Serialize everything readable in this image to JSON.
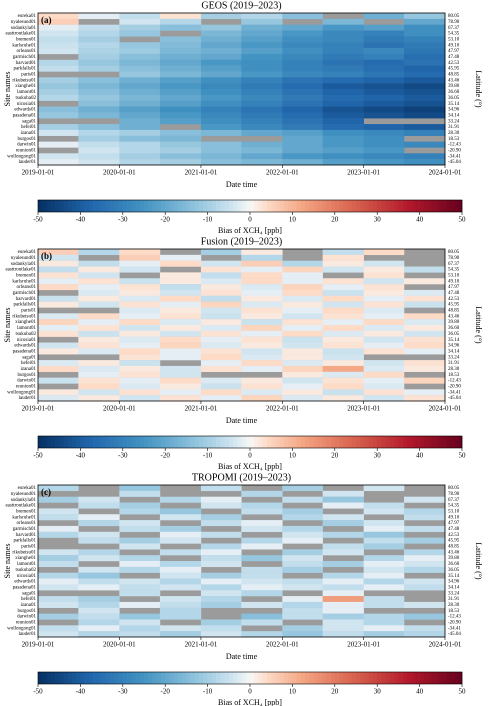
{
  "chart_data": [
    {
      "type": "heatmap",
      "title": "GEOS (2019–2023)",
      "panel_label": "(a)",
      "ylabel": "Site names",
      "y2label": "Latitude (°)",
      "xlabel": "Date time",
      "categories": [
        "eureka01",
        "nyalesund01",
        "sodankyla01",
        "easttroutlake01",
        "bremen01",
        "karlsruhe01",
        "orleans01",
        "garmisch01",
        "harvard01",
        "parkfalls01",
        "paris01",
        "rikubetsu01",
        "xianghe01",
        "lamont01",
        "tsukuba02",
        "nicosia01",
        "edwards01",
        "pasadena01",
        "saga01",
        "hefei01",
        "izana01",
        "burgos01",
        "darwin01",
        "reunion01",
        "wollongong01",
        "lauder01"
      ],
      "y2_labels": [
        "80.05",
        "78.90",
        "67.37",
        "54.35",
        "53.10",
        "49.10",
        "47.97",
        "47.48",
        "42.53",
        "45.95",
        "48.85",
        "43.46",
        "39.80",
        "36.60",
        "36.05",
        "35.14",
        "34.96",
        "34.14",
        "33.24",
        "31.91",
        "28.30",
        "18.53",
        "-12.43",
        "-20.90",
        "-34.41",
        "-45.04"
      ],
      "x": [
        "2019-01-01",
        "2019-07-01",
        "2020-01-01",
        "2020-07-01",
        "2021-01-01",
        "2021-07-01",
        "2022-01-01",
        "2022-07-01",
        "2023-01-01",
        "2023-07-01"
      ],
      "xlim": [
        "2019-01-01",
        "2024-01-01"
      ],
      "xticks": [
        "2019-01-01",
        "2020-01-01",
        "2021-01-01",
        "2022-01-01",
        "2023-01-01",
        "2024-01-01"
      ],
      "nan_color": "#9b9b9b",
      "z": [
        [
          4,
          -2,
          -6,
          3,
          -10,
          -8,
          -14,
          null,
          -18,
          -12
        ],
        [
          6,
          null,
          -4,
          -8,
          null,
          -12,
          null,
          -16,
          null,
          -20
        ],
        [
          -2,
          -6,
          -10,
          -14,
          -12,
          -18,
          -20,
          -24,
          -22,
          -26
        ],
        [
          -4,
          -8,
          -12,
          null,
          -16,
          -20,
          -24,
          -28,
          -30,
          -26
        ],
        [
          -6,
          -10,
          null,
          -14,
          -18,
          -22,
          -26,
          -28,
          -32,
          -30
        ],
        [
          -5,
          -8,
          -12,
          -15,
          -20,
          -24,
          -28,
          -30,
          -34,
          -32
        ],
        [
          -4,
          -9,
          -11,
          -16,
          -18,
          -22,
          -26,
          -30,
          -28,
          -33
        ],
        [
          null,
          -10,
          -14,
          -18,
          -20,
          -25,
          -28,
          -32,
          -30,
          -35
        ],
        [
          -8,
          -12,
          -16,
          -20,
          -24,
          -26,
          -30,
          -34,
          -36,
          -34
        ],
        [
          -6,
          -10,
          -14,
          -18,
          -22,
          -26,
          -30,
          -32,
          -35,
          -38
        ],
        [
          null,
          null,
          -12,
          -16,
          -20,
          -24,
          -28,
          -30,
          -33,
          -36
        ],
        [
          -10,
          -14,
          -18,
          -22,
          -26,
          -30,
          -34,
          -36,
          -38,
          -40
        ],
        [
          -12,
          -16,
          -20,
          -24,
          -28,
          -32,
          -36,
          -40,
          -42,
          -44
        ],
        [
          -10,
          -14,
          -18,
          -22,
          -26,
          -30,
          -34,
          -38,
          -40,
          -42
        ],
        [
          -8,
          -12,
          -16,
          -20,
          -24,
          -28,
          -32,
          -36,
          -38,
          -40
        ],
        [
          null,
          -14,
          -18,
          -22,
          -26,
          -30,
          -34,
          -38,
          -40,
          -42
        ],
        [
          -14,
          -18,
          -22,
          -26,
          -30,
          -34,
          -38,
          -42,
          -44,
          -46
        ],
        [
          -12,
          -16,
          -20,
          -24,
          -28,
          -32,
          -36,
          -40,
          -42,
          -44
        ],
        [
          null,
          null,
          -18,
          -22,
          -26,
          -30,
          -34,
          -38,
          null,
          null
        ],
        [
          -10,
          -14,
          -18,
          null,
          -24,
          -28,
          -32,
          -36,
          -38,
          -40
        ],
        [
          -4,
          -8,
          -10,
          -14,
          -16,
          -20,
          -22,
          -26,
          -28,
          -30
        ],
        [
          null,
          -10,
          -14,
          -16,
          null,
          null,
          -20,
          -24,
          -26,
          null
        ],
        [
          -2,
          -6,
          -8,
          -12,
          -14,
          -18,
          -20,
          -24,
          -26,
          -28
        ],
        [
          null,
          -4,
          -8,
          -10,
          -14,
          -16,
          -20,
          -22,
          -24,
          null
        ],
        [
          -4,
          -6,
          -10,
          -14,
          -16,
          -20,
          -24,
          -26,
          -28,
          -30
        ],
        [
          -2,
          -4,
          -8,
          -10,
          -14,
          -16,
          -18,
          -22,
          -24,
          -26
        ]
      ],
      "colorbar": {
        "label": "Bias of XCH₄ [ppb]",
        "lim": [
          -50,
          50
        ],
        "ticks": [
          -50,
          -40,
          -30,
          -20,
          -10,
          0,
          10,
          20,
          30,
          40,
          50
        ]
      }
    },
    {
      "type": "heatmap",
      "title": "Fusion (2019–2023)",
      "panel_label": "(b)",
      "ylabel": "Site names",
      "y2label": "Latitude (°)",
      "xlabel": "Date time",
      "categories": [
        "eureka01",
        "nyalesund01",
        "sodankyla01",
        "easttroutlake01",
        "bremen01",
        "karlsruhe01",
        "orleans01",
        "garmisch01",
        "harvard01",
        "parkfalls01",
        "paris01",
        "rikubetsu01",
        "xianghe01",
        "lamont01",
        "tsukuba02",
        "nicosia01",
        "edwards01",
        "pasadena01",
        "saga01",
        "hefei01",
        "izana01",
        "burgos01",
        "darwin01",
        "reunion01",
        "wollongong01",
        "lauder01"
      ],
      "y2_labels": [
        "80.05",
        "78.90",
        "67.37",
        "54.35",
        "53.10",
        "49.10",
        "47.97",
        "47.48",
        "42.53",
        "45.95",
        "48.85",
        "43.46",
        "39.80",
        "36.60",
        "36.05",
        "35.14",
        "34.96",
        "34.14",
        "33.24",
        "31.91",
        "28.30",
        "18.53",
        "-12.43",
        "-20.90",
        "-34.41",
        "-45.04"
      ],
      "x": [
        "2019-01-01",
        "2019-07-01",
        "2020-01-01",
        "2020-07-01",
        "2021-01-01",
        "2021-07-01",
        "2022-01-01",
        "2022-07-01",
        "2023-01-01",
        "2023-07-01"
      ],
      "xlim": [
        "2019-01-01",
        "2024-01-01"
      ],
      "xticks": [
        "2019-01-01",
        "2020-01-01",
        "2021-01-01",
        "2022-01-01",
        "2023-01-01",
        "2024-01-01"
      ],
      "nan_color": "#9b9b9b",
      "z": [
        [
          6,
          -8,
          4,
          null,
          -10,
          2,
          null,
          -6,
          4,
          null
        ],
        [
          -4,
          null,
          6,
          -2,
          null,
          -8,
          null,
          3,
          null,
          null
        ],
        [
          2,
          -6,
          -2,
          4,
          -4,
          6,
          -8,
          2,
          -4,
          null
        ],
        [
          -6,
          2,
          -4,
          null,
          3,
          -2,
          5,
          -4,
          2,
          -6
        ],
        [
          3,
          -4,
          null,
          2,
          -6,
          4,
          -2,
          null,
          3,
          null
        ],
        [
          -2,
          3,
          -5,
          2,
          -3,
          4,
          -2,
          3,
          -4,
          2
        ],
        [
          4,
          -2,
          3,
          -6,
          2,
          -3,
          5,
          -2,
          3,
          null
        ],
        [
          null,
          -3,
          2,
          -4,
          3,
          -2,
          4,
          -5,
          2,
          -3
        ],
        [
          -5,
          2,
          -3,
          4,
          -6,
          2,
          -3,
          4,
          -2,
          3
        ],
        [
          2,
          -4,
          3,
          -2,
          5,
          -3,
          2,
          -4,
          3,
          -5
        ],
        [
          null,
          null,
          -3,
          2,
          -4,
          3,
          -2,
          4,
          -3,
          null
        ],
        [
          -3,
          4,
          -2,
          3,
          -5,
          2,
          -4,
          3,
          -2,
          4
        ],
        [
          5,
          -2,
          4,
          -3,
          2,
          -5,
          3,
          -2,
          4,
          -3
        ],
        [
          -2,
          3,
          -4,
          2,
          -3,
          5,
          -2,
          4,
          -3,
          2
        ],
        [
          3,
          -5,
          2,
          -4,
          3,
          -2,
          4,
          -3,
          2,
          -4
        ],
        [
          null,
          2,
          -3,
          4,
          -2,
          3,
          -5,
          2,
          -4,
          3
        ],
        [
          -4,
          3,
          -2,
          5,
          -3,
          2,
          -4,
          3,
          -2,
          4
        ],
        [
          2,
          -3,
          4,
          -2,
          3,
          -4,
          2,
          -5,
          3,
          -2
        ],
        [
          null,
          null,
          3,
          -2,
          4,
          -3,
          2,
          -4,
          null,
          null
        ],
        [
          -3,
          2,
          -5,
          null,
          -2,
          4,
          -3,
          2,
          -4,
          3
        ],
        [
          4,
          -3,
          2,
          -4,
          3,
          -2,
          5,
          12,
          -3,
          2
        ],
        [
          null,
          -2,
          3,
          -4,
          null,
          null,
          2,
          -3,
          4,
          null
        ],
        [
          -5,
          3,
          -2,
          4,
          -3,
          2,
          -4,
          3,
          -2,
          5
        ],
        [
          null,
          4,
          -3,
          2,
          -5,
          3,
          -2,
          4,
          -3,
          null
        ],
        [
          2,
          -4,
          3,
          -2,
          4,
          -3,
          2,
          -5,
          3,
          -2
        ],
        [
          -3,
          2,
          -4,
          3,
          -2,
          5,
          -3,
          2,
          -4,
          3
        ]
      ],
      "colorbar": {
        "label": "Bias of XCH₄ [ppb]",
        "lim": [
          -50,
          50
        ],
        "ticks": [
          -50,
          -40,
          -30,
          -20,
          -10,
          0,
          10,
          20,
          30,
          40,
          50
        ]
      }
    },
    {
      "type": "heatmap",
      "title": "TROPOMI (2019–2023)",
      "panel_label": "(c)",
      "ylabel": "Site names",
      "y2label": "Latitude (°)",
      "xlabel": "Date time",
      "categories": [
        "eureka01",
        "nyalesund01",
        "sodankyla01",
        "easttroutlake01",
        "bremen01",
        "karlsruhe01",
        "orleans01",
        "garmisch01",
        "harvard01",
        "parkfalls01",
        "paris01",
        "rikubetsu01",
        "xianghe01",
        "lamont01",
        "tsukuba02",
        "nicosia01",
        "edwards01",
        "pasadena01",
        "saga01",
        "hefei01",
        "izana01",
        "burgos01",
        "darwin01",
        "reunion01",
        "wollongong01",
        "lauder01"
      ],
      "y2_labels": [
        "80.05",
        "78.90",
        "67.37",
        "54.35",
        "53.10",
        "49.10",
        "47.97",
        "47.48",
        "42.53",
        "45.95",
        "48.85",
        "43.46",
        "39.80",
        "36.60",
        "36.05",
        "35.14",
        "34.96",
        "34.14",
        "33.24",
        "31.91",
        "28.30",
        "18.53",
        "-12.43",
        "-20.90",
        "-34.41",
        "-45.04"
      ],
      "x": [
        "2019-01-01",
        "2019-07-01",
        "2020-01-01",
        "2020-07-01",
        "2021-01-01",
        "2021-07-01",
        "2022-01-01",
        "2022-07-01",
        "2023-01-01",
        "2023-07-01"
      ],
      "xlim": [
        "2019-01-01",
        "2024-01-01"
      ],
      "xticks": [
        "2019-01-01",
        "2020-01-01",
        "2021-01-01",
        "2022-01-01",
        "2023-01-01",
        "2024-01-01"
      ],
      "nan_color": "#9b9b9b",
      "z": [
        [
          -8,
          null,
          -12,
          null,
          -6,
          null,
          -10,
          null,
          -4,
          null
        ],
        [
          null,
          null,
          -6,
          null,
          null,
          -8,
          null,
          -4,
          null,
          null
        ],
        [
          -10,
          -4,
          null,
          -8,
          -2,
          null,
          -6,
          -12,
          null,
          -4
        ],
        [
          null,
          -6,
          -10,
          null,
          -4,
          -8,
          null,
          -2,
          -6,
          null
        ],
        [
          -4,
          null,
          -8,
          -12,
          null,
          -6,
          -10,
          null,
          -4,
          -8
        ],
        [
          -6,
          -2,
          null,
          -4,
          -10,
          null,
          -8,
          -4,
          null,
          -6
        ],
        [
          null,
          -8,
          -4,
          null,
          -6,
          -2,
          null,
          -10,
          -4,
          null
        ],
        [
          -2,
          null,
          -6,
          -10,
          null,
          -4,
          -8,
          null,
          -2,
          -6
        ],
        [
          -8,
          -4,
          null,
          -2,
          -6,
          null,
          -4,
          -8,
          -12,
          null
        ],
        [
          null,
          -6,
          -10,
          -4,
          null,
          -8,
          -2,
          null,
          -6,
          -10
        ],
        [
          null,
          null,
          -4,
          null,
          -8,
          -2,
          null,
          -6,
          -10,
          null
        ],
        [
          -4,
          -8,
          null,
          -6,
          -2,
          null,
          -10,
          -4,
          null,
          -8
        ],
        [
          -10,
          -4,
          -8,
          null,
          -6,
          -12,
          -4,
          null,
          -8,
          -2
        ],
        [
          -6,
          null,
          -2,
          -8,
          -4,
          null,
          -6,
          -10,
          -2,
          -4
        ],
        [
          null,
          -4,
          -8,
          -2,
          null,
          -6,
          -10,
          null,
          -4,
          -8
        ],
        [
          -8,
          -12,
          null,
          -4,
          -10,
          -6,
          null,
          -8,
          -2,
          null
        ],
        [
          -2,
          -6,
          -4,
          -8,
          -2,
          -4,
          -6,
          -2,
          -8,
          -4
        ],
        [
          -4,
          -2,
          -6,
          -4,
          -8,
          -2,
          -4,
          -6,
          -2,
          -6
        ],
        [
          null,
          null,
          -6,
          null,
          -4,
          -8,
          null,
          -2,
          null,
          null
        ],
        [
          -6,
          -10,
          null,
          -4,
          -8,
          null,
          -2,
          14,
          -6,
          null
        ],
        [
          -4,
          -8,
          -2,
          -6,
          -10,
          -4,
          -8,
          -2,
          -6,
          -4
        ],
        [
          null,
          -4,
          null,
          -8,
          null,
          null,
          -6,
          -2,
          null,
          null
        ],
        [
          -10,
          -6,
          -12,
          -8,
          null,
          -14,
          -6,
          -10,
          -8,
          -12
        ],
        [
          null,
          -8,
          -4,
          null,
          -10,
          -6,
          null,
          -4,
          -8,
          null
        ],
        [
          -6,
          -2,
          -8,
          -4,
          -6,
          null,
          -10,
          -4,
          -2,
          -6
        ],
        [
          -4,
          -8,
          -6,
          -10,
          -4,
          -8,
          -12,
          -6,
          -10,
          -8
        ]
      ],
      "colorbar": {
        "label": "Bias of XCH₄ [ppb]",
        "lim": [
          -50,
          50
        ],
        "ticks": [
          -50,
          -40,
          -30,
          -20,
          -10,
          0,
          10,
          20,
          30,
          40,
          50
        ]
      }
    }
  ]
}
